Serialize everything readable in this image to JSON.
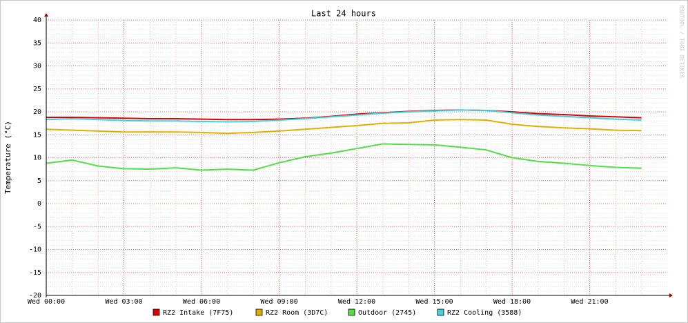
{
  "chart_data": {
    "type": "line",
    "title": "Last 24 hours",
    "y_label": "Temperature (°C)",
    "side_text": "RRDTOOL / TOBI OETIKER",
    "x": [
      "Wed 00:00",
      "Wed 01:00",
      "Wed 02:00",
      "Wed 03:00",
      "Wed 04:00",
      "Wed 05:00",
      "Wed 06:00",
      "Wed 07:00",
      "Wed 08:00",
      "Wed 09:00",
      "Wed 10:00",
      "Wed 11:00",
      "Wed 12:00",
      "Wed 13:00",
      "Wed 14:00",
      "Wed 15:00",
      "Wed 16:00",
      "Wed 17:00",
      "Wed 18:00",
      "Wed 19:00",
      "Wed 20:00",
      "Wed 21:00",
      "Wed 22:00",
      "Wed 23:00"
    ],
    "xlim": [
      "Wed 00:00",
      "Thu 00:00"
    ],
    "xticks": [
      "Wed 00:00",
      "Wed 03:00",
      "Wed 06:00",
      "Wed 09:00",
      "Wed 12:00",
      "Wed 15:00",
      "Wed 18:00",
      "Wed 21:00"
    ],
    "ylim": [
      -20,
      40
    ],
    "yticks": [
      -20,
      -15,
      -10,
      -5,
      0,
      5,
      10,
      15,
      20,
      25,
      30,
      35,
      40
    ],
    "grid": true,
    "legend": "bottom",
    "series": [
      {
        "name": "RZ2 Intake (7F75)",
        "color": "#e00000",
        "values": [
          18.8,
          18.8,
          18.7,
          18.6,
          18.5,
          18.5,
          18.4,
          18.3,
          18.3,
          18.4,
          18.6,
          19.0,
          19.5,
          19.8,
          20.1,
          20.3,
          20.4,
          20.3,
          20.0,
          19.6,
          19.4,
          19.1,
          18.9,
          18.7
        ]
      },
      {
        "name": "RZ2 Room (3D7C)",
        "color": "#e0b000",
        "values": [
          16.2,
          16.0,
          15.8,
          15.6,
          15.6,
          15.6,
          15.5,
          15.3,
          15.5,
          15.8,
          16.2,
          16.6,
          17.0,
          17.5,
          17.6,
          18.2,
          18.3,
          18.2,
          17.3,
          16.8,
          16.5,
          16.3,
          16.0,
          15.9
        ]
      },
      {
        "name": "Outdoor (2745)",
        "color": "#50e040",
        "values": [
          8.8,
          9.5,
          8.2,
          7.6,
          7.5,
          7.8,
          7.3,
          7.5,
          7.3,
          8.9,
          10.2,
          11.0,
          12.0,
          13.0,
          12.9,
          12.8,
          12.3,
          11.7,
          10.0,
          9.2,
          8.8,
          8.3,
          7.9,
          7.7
        ]
      },
      {
        "name": "RZ2 Cooling (3588)",
        "color": "#40d0e0",
        "values": [
          18.3,
          18.5,
          18.3,
          18.1,
          18.0,
          18.0,
          17.9,
          17.8,
          17.9,
          18.2,
          18.5,
          18.9,
          19.3,
          19.7,
          20.0,
          20.2,
          20.4,
          20.3,
          19.8,
          19.3,
          19.0,
          18.7,
          18.4,
          18.2
        ]
      }
    ]
  }
}
